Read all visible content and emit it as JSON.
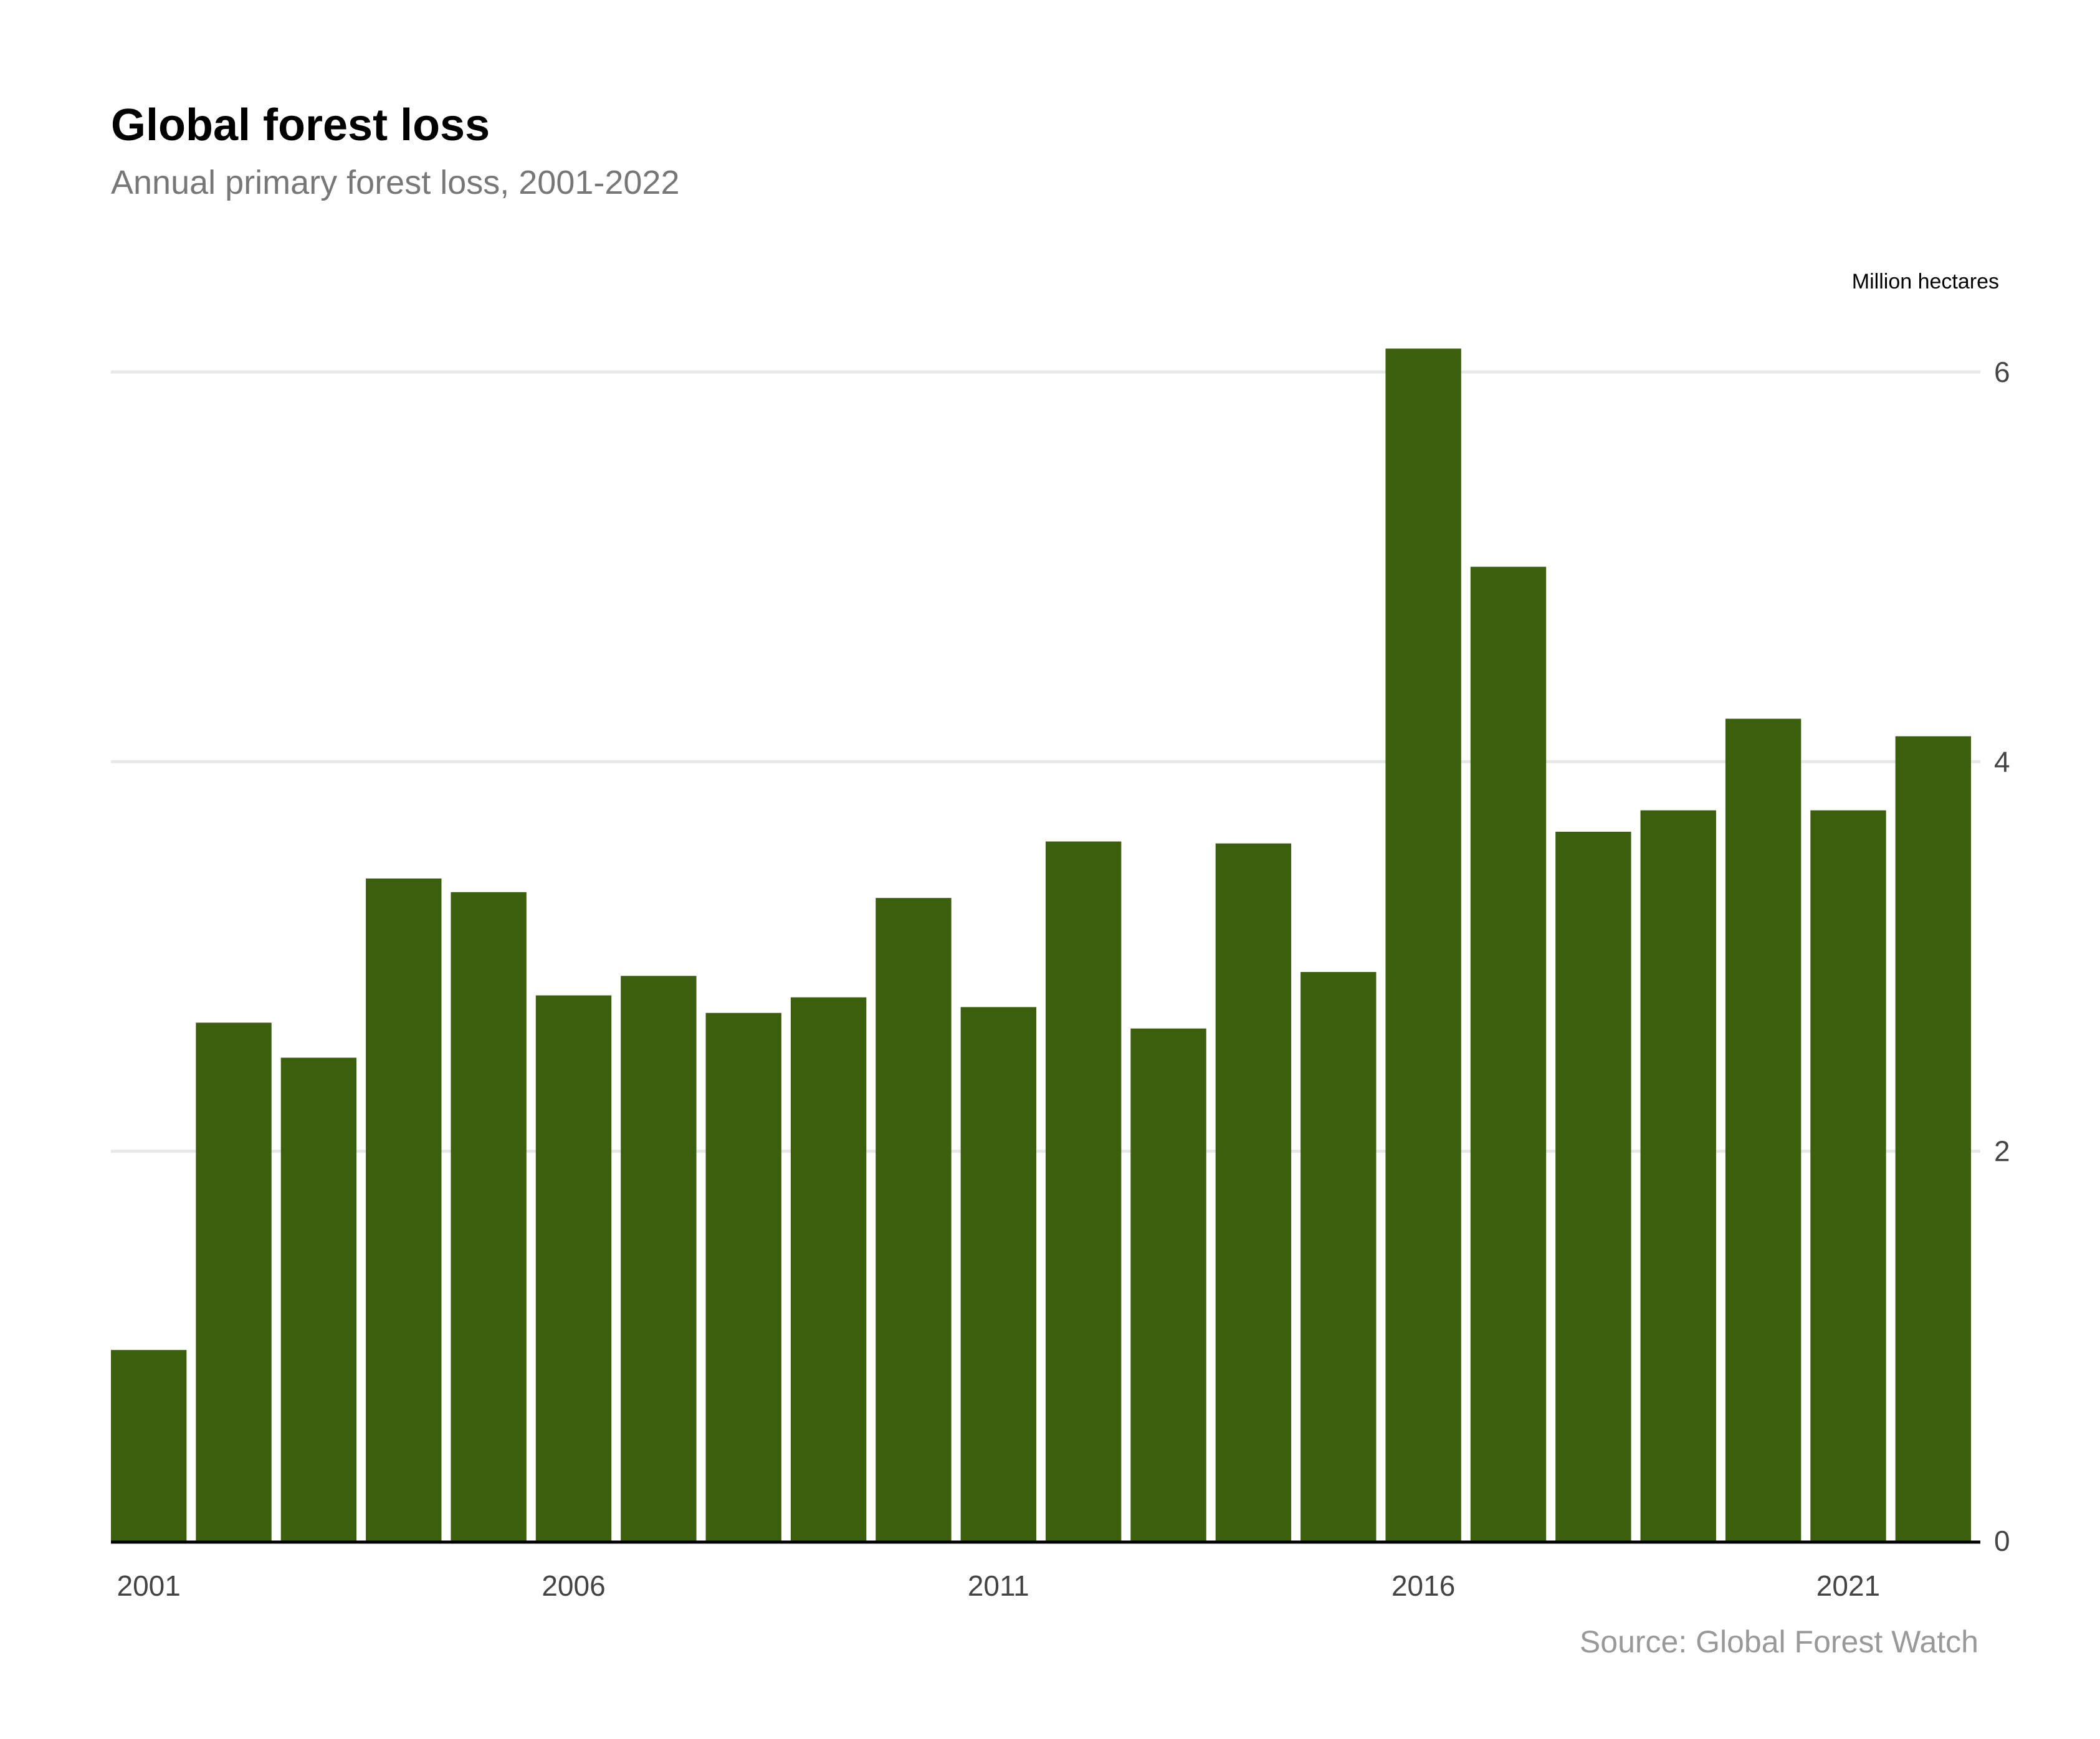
{
  "title": "Global forest loss",
  "subtitle": "Annual primary forest loss, 2001-2022",
  "source": "Source: Global Forest Watch",
  "colors": {
    "bar": "#3b5f0d",
    "grid": "#e8e8e8",
    "axis": "#000000",
    "tick_text": "#444444"
  },
  "chart_data": {
    "type": "bar",
    "ylabel": "Million hectares",
    "ylim": [
      0,
      6
    ],
    "yticks": [
      0,
      2,
      4,
      6
    ],
    "grid": true,
    "y_axis_position": "right",
    "categories": [
      "2001",
      "2002",
      "2003",
      "2004",
      "2005",
      "2006",
      "2007",
      "2008",
      "2009",
      "2010",
      "2011",
      "2012",
      "2013",
      "2014",
      "2015",
      "2016",
      "2017",
      "2018",
      "2019",
      "2020",
      "2021",
      "2022"
    ],
    "xtick_labels": [
      "2001",
      "2006",
      "2011",
      "2016",
      "2021"
    ],
    "values": [
      0.98,
      2.66,
      2.48,
      3.4,
      3.33,
      2.8,
      2.9,
      2.71,
      2.79,
      3.3,
      2.74,
      3.59,
      2.63,
      3.58,
      2.92,
      6.12,
      5.0,
      3.64,
      3.75,
      4.22,
      3.75,
      4.13
    ]
  }
}
